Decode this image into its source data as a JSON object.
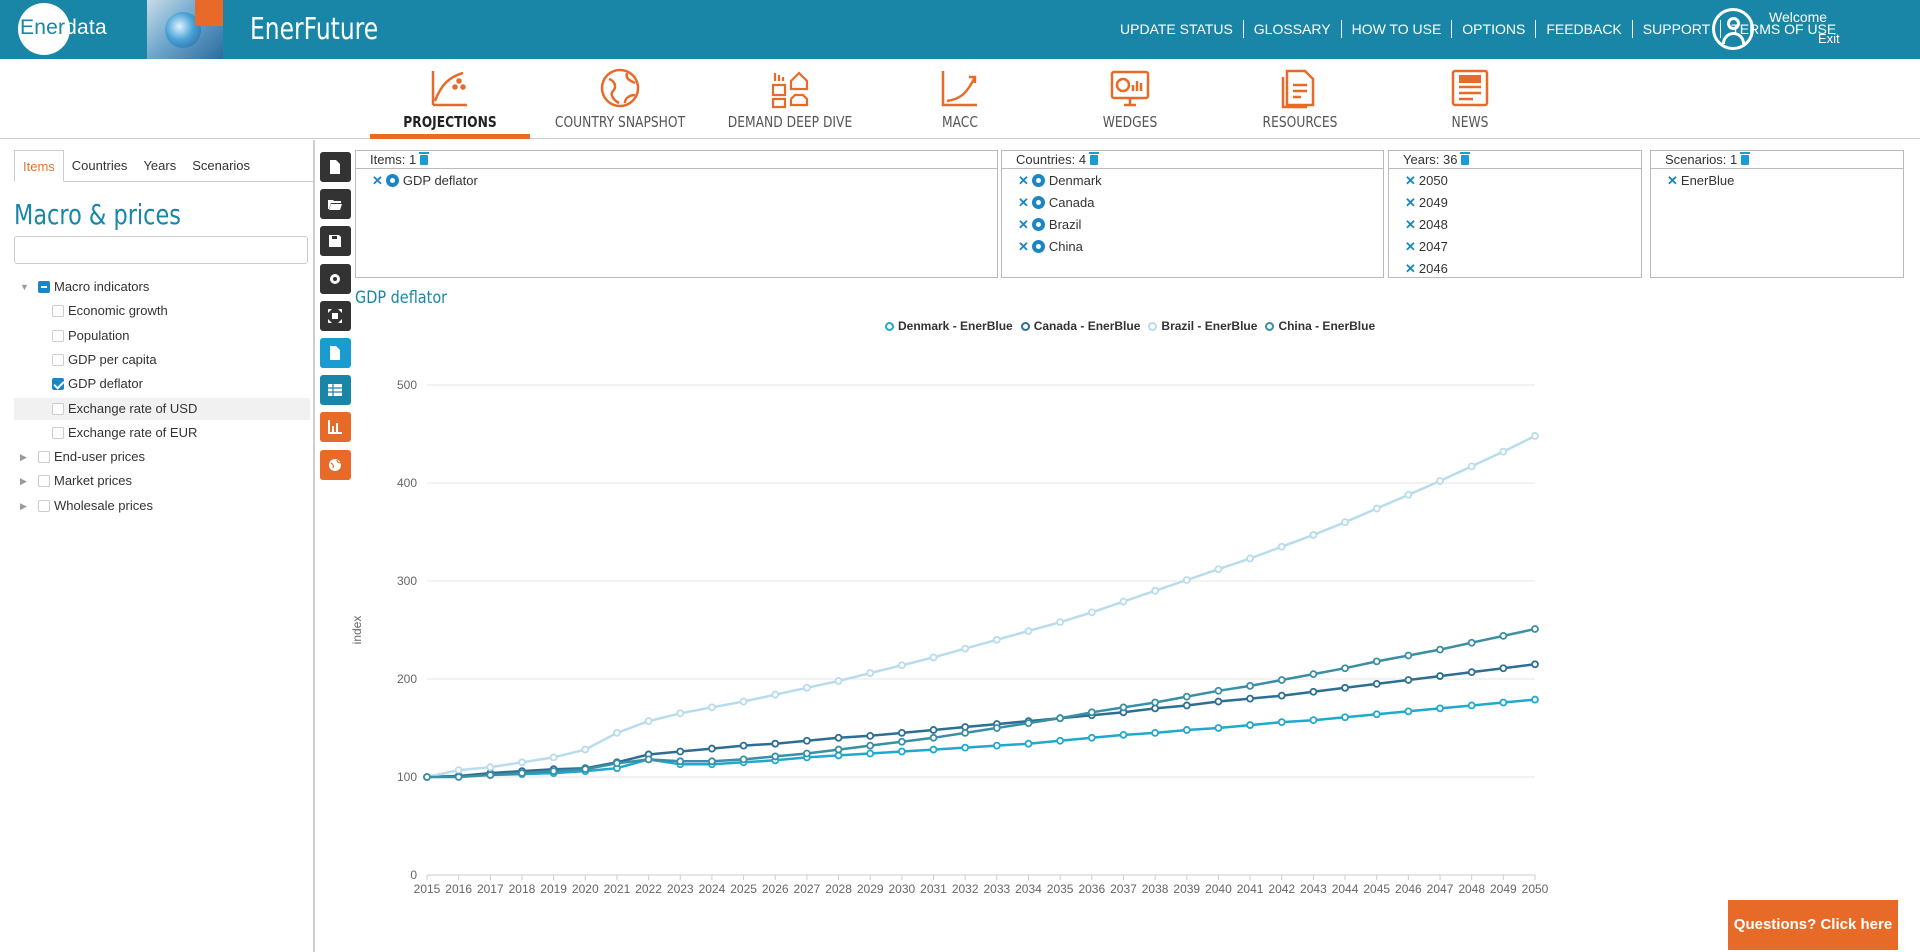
{
  "header": {
    "logo_text_part1": "Ener",
    "logo_text_part2": "data",
    "app_title": "EnerFuture",
    "nav": [
      "UPDATE STATUS",
      "GLOSSARY",
      "HOW TO USE",
      "OPTIONS",
      "FEEDBACK",
      "SUPPORT",
      "TERMS OF USE"
    ],
    "welcome": "Welcome",
    "exit": "Exit",
    "bar_color": "#1a86a7"
  },
  "tabs": [
    {
      "label": "PROJECTIONS",
      "icon": "projections-chart-icon",
      "active": true
    },
    {
      "label": "COUNTRY SNAPSHOT",
      "icon": "globe-icon",
      "active": false
    },
    {
      "label": "DEMAND DEEP DIVE",
      "icon": "demand-buildings-icon",
      "active": false
    },
    {
      "label": "MACC",
      "icon": "macc-curve-icon",
      "active": false
    },
    {
      "label": "WEDGES",
      "icon": "wedges-monitor-icon",
      "active": false
    },
    {
      "label": "RESOURCES",
      "icon": "resources-documents-icon",
      "active": false
    },
    {
      "label": "NEWS",
      "icon": "news-icon",
      "active": false
    }
  ],
  "left_tabs": [
    "Items",
    "Countries",
    "Years",
    "Scenarios"
  ],
  "section_title": "Macro & prices",
  "search": {
    "value": "",
    "placeholder": ""
  },
  "tree": [
    {
      "label": "Macro indicators",
      "level": 0,
      "state": "partial",
      "expanded": true
    },
    {
      "label": "Economic growth",
      "level": 1,
      "state": "unchecked"
    },
    {
      "label": "Population",
      "level": 1,
      "state": "unchecked"
    },
    {
      "label": "GDP per capita",
      "level": 1,
      "state": "unchecked"
    },
    {
      "label": "GDP deflator",
      "level": 1,
      "state": "checked"
    },
    {
      "label": "Exchange rate of USD",
      "level": 1,
      "state": "unchecked",
      "highlight": true
    },
    {
      "label": "Exchange rate of EUR",
      "level": 1,
      "state": "unchecked"
    },
    {
      "label": "End-user prices",
      "level": 0,
      "state": "unchecked",
      "expanded": false
    },
    {
      "label": "Market prices",
      "level": 0,
      "state": "unchecked",
      "expanded": false
    },
    {
      "label": "Wholesale prices",
      "level": 0,
      "state": "unchecked",
      "expanded": false
    }
  ],
  "toolbar": [
    {
      "name": "new-file-icon",
      "color": "#333333"
    },
    {
      "name": "open-folder-icon",
      "color": "#333333"
    },
    {
      "name": "save-icon",
      "color": "#333333"
    },
    {
      "name": "settings-gear-icon",
      "color": "#333333"
    },
    {
      "name": "fullscreen-icon",
      "color": "#333333"
    },
    {
      "name": "export-file-icon",
      "color": "#1a9cd0"
    },
    {
      "name": "table-view-icon",
      "color": "#1a86a7"
    },
    {
      "name": "chart-view-icon",
      "color": "#e86a28"
    },
    {
      "name": "map-view-icon",
      "color": "#e86a28"
    }
  ],
  "selections": {
    "items": {
      "title": "Items: 1",
      "list": [
        {
          "label": "GDP deflator",
          "eye": true
        }
      ]
    },
    "countries": {
      "title": "Countries: 4",
      "list": [
        {
          "label": "Denmark",
          "eye": true
        },
        {
          "label": "Canada",
          "eye": true
        },
        {
          "label": "Brazil",
          "eye": true
        },
        {
          "label": "China",
          "eye": true
        }
      ]
    },
    "years": {
      "title": "Years: 36",
      "list": [
        {
          "label": "2050"
        },
        {
          "label": "2049"
        },
        {
          "label": "2048"
        },
        {
          "label": "2047"
        },
        {
          "label": "2046"
        }
      ]
    },
    "scenarios": {
      "title": "Scenarios: 1",
      "list": [
        {
          "label": "EnerBlue"
        }
      ]
    }
  },
  "chart_title": "GDP deflator",
  "help_button": "Questions? Click here",
  "chart_data": {
    "type": "line",
    "title": "GDP deflator",
    "ylabel": "index",
    "xlabel": "",
    "ylim": [
      0,
      500
    ],
    "yticks": [
      0,
      100,
      200,
      300,
      400,
      500
    ],
    "grid": true,
    "legend_position": "top-center",
    "x": [
      2015,
      2016,
      2017,
      2018,
      2019,
      2020,
      2021,
      2022,
      2023,
      2024,
      2025,
      2026,
      2027,
      2028,
      2029,
      2030,
      2031,
      2032,
      2033,
      2034,
      2035,
      2036,
      2037,
      2038,
      2039,
      2040,
      2041,
      2042,
      2043,
      2044,
      2045,
      2046,
      2047,
      2048,
      2049,
      2050
    ],
    "series": [
      {
        "name": "Denmark - EnerBlue",
        "color": "#1fa9cf",
        "values": [
          100,
          101,
          102,
          103,
          104,
          106,
          109,
          118,
          113,
          113,
          115,
          117,
          120,
          122,
          124,
          126,
          128,
          130,
          132,
          134,
          137,
          140,
          143,
          145,
          148,
          150,
          153,
          156,
          158,
          161,
          164,
          167,
          170,
          173,
          176,
          179
        ]
      },
      {
        "name": "Canada - EnerBlue",
        "color": "#2c6f93",
        "values": [
          100,
          101,
          104,
          106,
          108,
          109,
          115,
          123,
          126,
          129,
          132,
          134,
          137,
          140,
          142,
          145,
          148,
          151,
          154,
          157,
          160,
          163,
          166,
          170,
          173,
          177,
          180,
          183,
          187,
          191,
          195,
          199,
          203,
          207,
          211,
          215
        ]
      },
      {
        "name": "Brazil - EnerBlue",
        "color": "#b9dcec",
        "values": [
          100,
          107,
          110,
          115,
          120,
          128,
          145,
          157,
          165,
          171,
          177,
          184,
          191,
          198,
          206,
          214,
          222,
          231,
          240,
          249,
          258,
          268,
          279,
          290,
          301,
          312,
          323,
          335,
          347,
          360,
          374,
          388,
          402,
          417,
          432,
          448
        ]
      },
      {
        "name": "China - EnerBlue",
        "color": "#3a8fa5",
        "values": [
          100,
          100,
          102,
          104,
          106,
          108,
          114,
          118,
          116,
          116,
          118,
          121,
          124,
          128,
          132,
          136,
          140,
          145,
          150,
          155,
          160,
          166,
          171,
          176,
          182,
          188,
          193,
          199,
          205,
          211,
          218,
          224,
          230,
          237,
          244,
          251
        ]
      }
    ]
  }
}
